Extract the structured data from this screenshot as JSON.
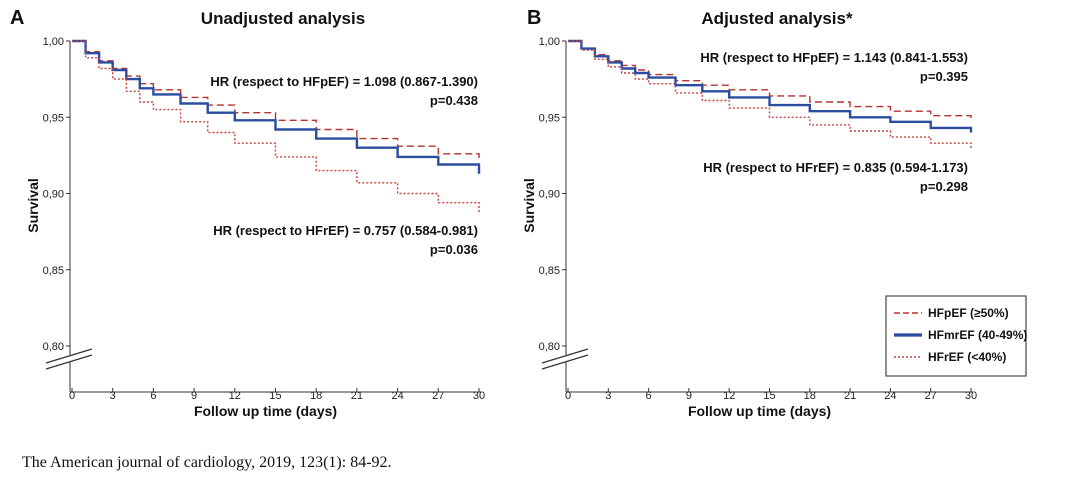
{
  "source_citation": "The American journal of cardiology, 2019, 123(1): 84-92.",
  "chart_data": [
    {
      "type": "line",
      "panel_letter": "A",
      "title": "Unadjusted analysis",
      "xlabel": "Follow up time (days)",
      "ylabel": "Survival",
      "xlim": [
        0,
        30
      ],
      "ylim": [
        0.8,
        1.0
      ],
      "x_ticks": [
        0,
        3,
        6,
        9,
        12,
        15,
        18,
        21,
        24,
        27,
        30
      ],
      "y_ticks": [
        1.0,
        0.95,
        0.9,
        0.85,
        0.8
      ],
      "y_tick_labels": [
        "1,00",
        "0,95",
        "0,90",
        "0,85",
        "0,80"
      ],
      "series": [
        {
          "name": "HFpEF (≥50%)",
          "style": "dashed",
          "color": "#b5322e",
          "x": [
            0,
            1,
            2,
            3,
            4,
            5,
            6,
            8,
            10,
            12,
            15,
            18,
            21,
            24,
            27,
            30
          ],
          "y": [
            1.0,
            0.993,
            0.987,
            0.982,
            0.977,
            0.972,
            0.968,
            0.963,
            0.958,
            0.953,
            0.948,
            0.942,
            0.936,
            0.931,
            0.926,
            0.921
          ]
        },
        {
          "name": "HFmrEF (40-49%)",
          "style": "solid",
          "color": "#2b4da0",
          "x": [
            0,
            1,
            2,
            3,
            4,
            5,
            6,
            8,
            10,
            12,
            15,
            18,
            21,
            24,
            27,
            30
          ],
          "y": [
            1.0,
            0.992,
            0.986,
            0.981,
            0.975,
            0.969,
            0.965,
            0.959,
            0.953,
            0.948,
            0.942,
            0.936,
            0.93,
            0.924,
            0.919,
            0.913
          ]
        },
        {
          "name": "HFrEF (<40%)",
          "style": "dotted",
          "color": "#c9413c",
          "x": [
            0,
            1,
            2,
            3,
            4,
            5,
            6,
            8,
            10,
            12,
            15,
            18,
            21,
            24,
            27,
            30
          ],
          "y": [
            1.0,
            0.989,
            0.982,
            0.975,
            0.967,
            0.96,
            0.955,
            0.947,
            0.94,
            0.933,
            0.924,
            0.915,
            0.907,
            0.9,
            0.894,
            0.887
          ]
        }
      ],
      "annotations": [
        {
          "line1": "HR (respect to HFpEF) = 1.098 (0.867-1.390)",
          "line2": "p=0.438"
        },
        {
          "line1": "HR (respect to HFrEF) = 0.757 (0.584-0.981)",
          "line2": "p=0.036"
        }
      ]
    },
    {
      "type": "line",
      "panel_letter": "B",
      "title": "Adjusted analysis*",
      "xlabel": "Follow up time (days)",
      "ylabel": "Survival",
      "xlim": [
        0,
        30
      ],
      "ylim": [
        0.8,
        1.0
      ],
      "x_ticks": [
        0,
        3,
        6,
        9,
        12,
        15,
        18,
        21,
        24,
        27,
        30
      ],
      "y_ticks": [
        1.0,
        0.95,
        0.9,
        0.85,
        0.8
      ],
      "y_tick_labels": [
        "1,00",
        "0,95",
        "0,90",
        "0,85",
        "0,80"
      ],
      "legend_position": "bottom-right",
      "series": [
        {
          "name": "HFpEF (≥50%)",
          "style": "dashed",
          "color": "#b5322e",
          "x": [
            0,
            1,
            2,
            3,
            4,
            5,
            6,
            8,
            10,
            12,
            15,
            18,
            21,
            24,
            27,
            30
          ],
          "y": [
            1.0,
            0.995,
            0.991,
            0.987,
            0.984,
            0.981,
            0.978,
            0.974,
            0.971,
            0.968,
            0.964,
            0.96,
            0.957,
            0.954,
            0.951,
            0.948
          ]
        },
        {
          "name": "HFmrEF (40-49%)",
          "style": "solid",
          "color": "#2b4da0",
          "x": [
            0,
            1,
            2,
            3,
            4,
            5,
            6,
            8,
            10,
            12,
            15,
            18,
            21,
            24,
            27,
            30
          ],
          "y": [
            1.0,
            0.995,
            0.99,
            0.986,
            0.982,
            0.979,
            0.976,
            0.971,
            0.967,
            0.963,
            0.958,
            0.954,
            0.95,
            0.947,
            0.943,
            0.94
          ]
        },
        {
          "name": "HFrEF (<40%)",
          "style": "dotted",
          "color": "#c9413c",
          "x": [
            0,
            1,
            2,
            3,
            4,
            5,
            6,
            8,
            10,
            12,
            15,
            18,
            21,
            24,
            27,
            30
          ],
          "y": [
            1.0,
            0.994,
            0.988,
            0.983,
            0.979,
            0.975,
            0.972,
            0.966,
            0.961,
            0.956,
            0.95,
            0.945,
            0.941,
            0.937,
            0.933,
            0.929
          ]
        }
      ],
      "annotations": [
        {
          "line1": "HR (respect to HFpEF) = 1.143 (0.841-1.553)",
          "line2": "p=0.395"
        },
        {
          "line1": "HR (respect to HFrEF) = 0.835 (0.594-1.173)",
          "line2": "p=0.298"
        }
      ]
    }
  ]
}
